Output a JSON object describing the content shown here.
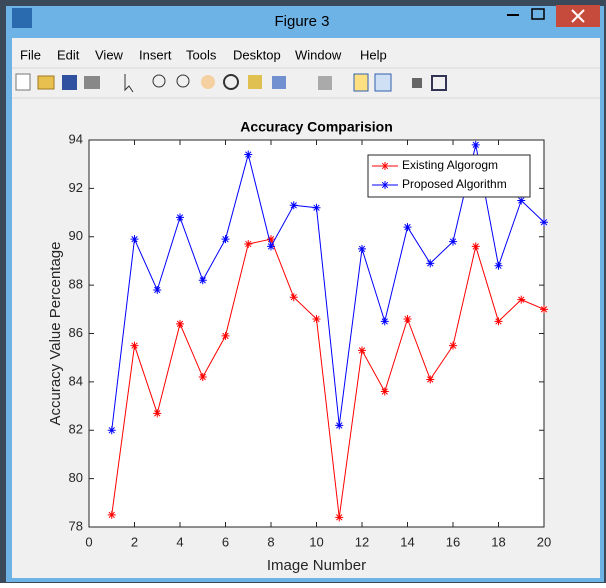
{
  "window": {
    "title": "Figure 3"
  },
  "menu": [
    "File",
    "Edit",
    "View",
    "Insert",
    "Tools",
    "Desktop",
    "Window",
    "Help"
  ],
  "chart_data": {
    "type": "line",
    "title": "Accuracy Comparision",
    "x_label": "Image Number",
    "y_label": "Accuracy Value Percentage",
    "x": [
      1,
      2,
      3,
      4,
      5,
      6,
      7,
      8,
      9,
      10,
      11,
      12,
      13,
      14,
      15,
      16,
      17,
      18,
      19,
      20
    ],
    "series": [
      {
        "name": "Existing Algorogm",
        "color": "#ff0000",
        "marker": "*",
        "values": [
          78.5,
          85.5,
          82.7,
          86.4,
          84.2,
          85.9,
          89.7,
          89.9,
          87.5,
          86.6,
          78.4,
          85.3,
          83.6,
          86.6,
          84.1,
          85.5,
          89.6,
          86.5,
          87.4,
          87.0
        ]
      },
      {
        "name": "Proposed Algorithm",
        "color": "#0000ff",
        "marker": "*",
        "values": [
          82.0,
          89.9,
          87.8,
          90.8,
          88.2,
          89.9,
          93.4,
          89.6,
          91.3,
          91.2,
          82.2,
          89.5,
          86.5,
          90.4,
          88.9,
          89.8,
          93.8,
          88.8,
          91.5,
          90.6
        ]
      }
    ],
    "xlim": [
      0,
      20
    ],
    "xticks": [
      0,
      2,
      4,
      6,
      8,
      10,
      12,
      14,
      16,
      18,
      20
    ],
    "ylim": [
      78,
      94
    ],
    "yticks": [
      78,
      80,
      82,
      84,
      86,
      88,
      90,
      92,
      94
    ],
    "legend": "upper right",
    "grid": false
  }
}
